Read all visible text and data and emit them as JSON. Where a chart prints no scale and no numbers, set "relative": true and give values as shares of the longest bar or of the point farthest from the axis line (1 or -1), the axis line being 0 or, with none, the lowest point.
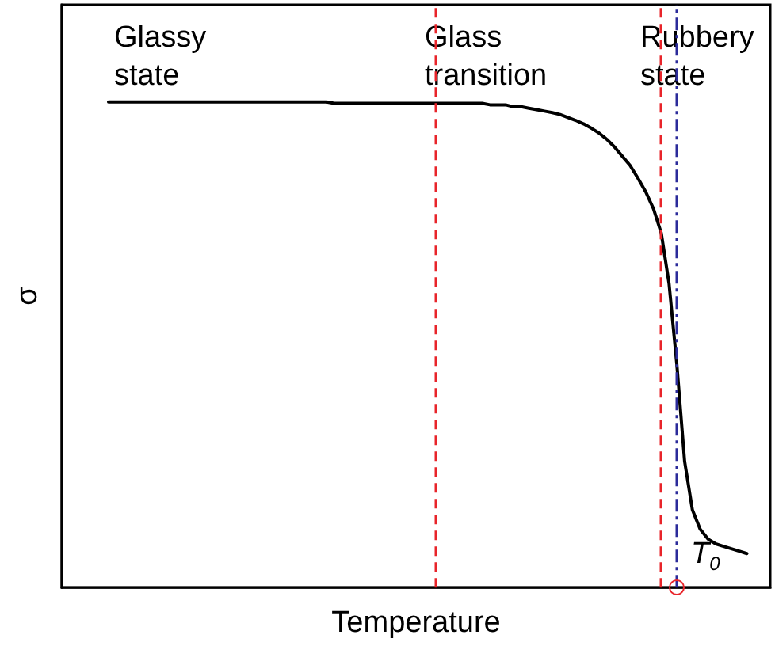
{
  "chart_data": {
    "type": "line",
    "relative": true,
    "xlabel": "Temperature",
    "ylabel": "σ",
    "line_style": "solid",
    "categories": [
      null,
      null,
      null,
      null,
      null,
      null,
      null,
      null,
      null,
      null,
      null,
      null,
      null,
      null,
      null,
      null,
      null,
      null,
      null,
      null,
      null,
      null,
      null,
      null,
      null,
      null,
      null,
      null,
      null,
      null,
      null,
      null,
      null,
      null,
      null,
      null,
      null,
      null,
      null,
      null,
      null,
      null,
      null,
      null,
      null,
      null,
      null,
      null,
      null,
      null,
      null,
      null,
      null,
      null,
      null,
      null,
      null,
      null,
      null,
      null,
      null,
      null,
      null,
      null,
      null,
      null,
      null,
      null,
      null,
      null,
      null,
      null,
      null,
      null,
      null,
      null,
      null,
      null,
      null,
      null,
      null,
      null,
      null,
      null,
      null,
      null,
      null,
      null,
      null,
      null,
      null,
      null
    ],
    "series": [
      {
        "color": "#000000",
        "values": [
          null,
          null,
          null,
          null,
          null,
          null,
          1,
          1,
          1,
          1,
          1,
          1,
          1,
          1,
          1,
          1,
          1,
          1,
          1,
          1,
          1,
          1,
          1,
          1,
          1,
          1,
          1,
          1,
          1,
          1,
          1,
          1,
          1,
          1,
          1,
          0.997,
          0.997,
          0.997,
          0.997,
          0.997,
          0.997,
          0.997,
          0.997,
          0.997,
          0.997,
          0.997,
          0.997,
          0.997,
          0.997,
          0.997,
          0.997,
          0.997,
          0.997,
          0.997,
          0.997,
          0.994,
          0.994,
          0.994,
          0.99,
          0.99,
          0.987,
          0.984,
          0.981,
          0.978,
          0.974,
          0.968,
          0.962,
          0.955,
          0.946,
          0.936,
          0.923,
          0.907,
          0.888,
          0.869,
          0.843,
          0.815,
          0.78,
          0.73,
          0.626,
          0.46,
          0.26,
          0.16,
          0.12,
          0.1,
          0.09,
          0.085,
          0.08,
          0.075,
          0.07,
          null,
          null,
          null
        ]
      }
    ],
    "annotations": [
      "Glassy\nstate",
      "Glass\ntransition",
      "Rubbery\nstate",
      "T$_{0}$"
    ]
  }
}
